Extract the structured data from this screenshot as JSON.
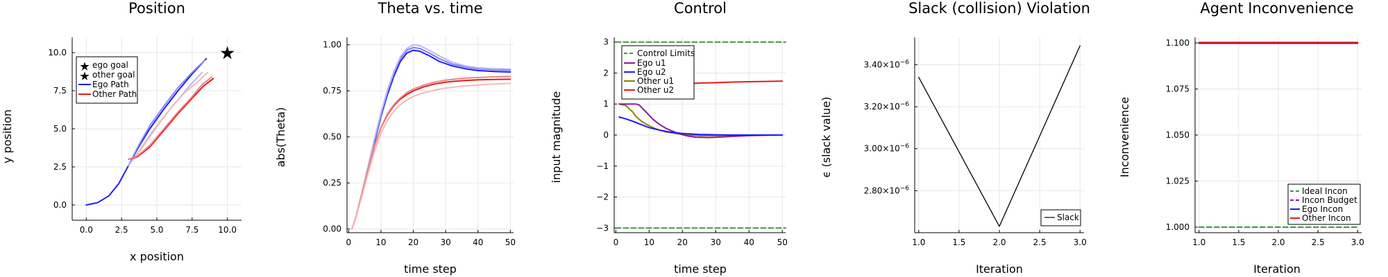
{
  "chart_data": [
    {
      "type": "line",
      "title": "Position",
      "xlabel": "x position",
      "ylabel": "y position",
      "xlim": [
        -1,
        11
      ],
      "ylim": [
        -1,
        11
      ],
      "xticks": [
        "0.0",
        "2.5",
        "5.0",
        "7.5",
        "10.0"
      ],
      "xtick_values": [
        0,
        2.5,
        5,
        7.5,
        10
      ],
      "yticks": [
        "0.0",
        "2.5",
        "5.0",
        "7.5",
        "10.0"
      ],
      "ytick_values": [
        0,
        2.5,
        5,
        7.5,
        10
      ],
      "grid": true,
      "legend_position": "top-left",
      "legend": [
        "ego goal",
        "other goal",
        "Ego Path",
        "Other Path"
      ],
      "goals": [
        {
          "name": "ego goal",
          "x": 10,
          "y": 10,
          "color": "#1a1aff"
        },
        {
          "name": "other goal",
          "x": 10,
          "y": 10,
          "color": "#e31a1c"
        }
      ],
      "series": [
        {
          "name": "Ego Path",
          "color": "#1a1aff",
          "x": [
            0,
            0.8,
            1.6,
            2.3,
            3.0,
            3.7,
            4.5,
            5.5,
            6.5,
            7.5,
            8.5
          ],
          "y": [
            0,
            0.15,
            0.6,
            1.4,
            2.6,
            3.8,
            5.0,
            6.3,
            7.5,
            8.6,
            9.6
          ]
        },
        {
          "name": "Ego Path",
          "color": "#8a8aff",
          "x": [
            3.0,
            3.7,
            4.5,
            5.5,
            6.5,
            7.5,
            8.4
          ],
          "y": [
            2.6,
            3.9,
            5.2,
            6.5,
            7.7,
            8.7,
            9.5
          ]
        },
        {
          "name": "Ego Path",
          "color": "#b8b8f0",
          "x": [
            3.0,
            3.8,
            4.6,
            5.5,
            6.4,
            7.3,
            8.2
          ],
          "y": [
            2.6,
            3.6,
            4.7,
            5.8,
            6.8,
            7.8,
            8.7
          ]
        },
        {
          "name": "Other Path",
          "color": "#e31a1c",
          "x": [
            3.0,
            3.6,
            4.5,
            5.5,
            6.5,
            7.5,
            8.3,
            9.0
          ],
          "y": [
            3.0,
            3.15,
            3.8,
            4.9,
            6.0,
            7.0,
            7.8,
            8.3
          ]
        },
        {
          "name": "Other Path",
          "color": "#f08080",
          "x": [
            3.0,
            3.6,
            4.5,
            5.5,
            6.5,
            7.5,
            8.2,
            8.9
          ],
          "y": [
            3.0,
            3.2,
            3.9,
            5.0,
            6.1,
            7.1,
            7.9,
            8.4
          ]
        },
        {
          "name": "Other Path",
          "color": "#f4b8b8",
          "x": [
            3.6,
            4.3,
            5.2,
            6.1,
            7.0,
            7.9,
            8.6
          ],
          "y": [
            3.3,
            4.2,
            5.4,
            6.5,
            7.4,
            8.1,
            8.7
          ]
        }
      ]
    },
    {
      "type": "line",
      "title": "Theta vs. time",
      "xlabel": "time step",
      "ylabel": "abs(Theta)",
      "xlim": [
        -0.5,
        51
      ],
      "ylim": [
        -0.02,
        1.04
      ],
      "xticks": [
        "0",
        "10",
        "20",
        "30",
        "40",
        "50"
      ],
      "xtick_values": [
        0,
        10,
        20,
        30,
        40,
        50
      ],
      "yticks": [
        "0.00",
        "0.25",
        "0.50",
        "0.75",
        "1.00"
      ],
      "ytick_values": [
        0,
        0.25,
        0.5,
        0.75,
        1.0
      ],
      "grid": true,
      "series": [
        {
          "color": "#1a1aff",
          "x": [
            1,
            2,
            4,
            6,
            8,
            10,
            12,
            14,
            16,
            18,
            20,
            22,
            25,
            28,
            32,
            36,
            40,
            45,
            50
          ],
          "y": [
            0,
            0.05,
            0.18,
            0.32,
            0.47,
            0.61,
            0.73,
            0.83,
            0.91,
            0.955,
            0.97,
            0.965,
            0.94,
            0.91,
            0.885,
            0.87,
            0.86,
            0.855,
            0.852
          ]
        },
        {
          "color": "#7a7aff",
          "x": [
            1,
            2,
            4,
            6,
            8,
            10,
            12,
            14,
            16,
            18,
            20,
            22,
            25,
            28,
            32,
            36,
            40,
            45,
            50
          ],
          "y": [
            0,
            0.05,
            0.18,
            0.33,
            0.48,
            0.62,
            0.745,
            0.845,
            0.925,
            0.97,
            0.985,
            0.98,
            0.955,
            0.925,
            0.895,
            0.88,
            0.87,
            0.865,
            0.862
          ]
        },
        {
          "color": "#b8b8f0",
          "x": [
            1,
            2,
            4,
            6,
            8,
            10,
            12,
            14,
            16,
            18,
            20,
            22,
            25,
            28,
            32,
            36,
            40,
            45,
            50
          ],
          "y": [
            0,
            0.05,
            0.19,
            0.34,
            0.49,
            0.63,
            0.755,
            0.855,
            0.935,
            0.98,
            1.0,
            0.995,
            0.97,
            0.94,
            0.905,
            0.885,
            0.875,
            0.87,
            0.868
          ]
        },
        {
          "color": "#e31a1c",
          "x": [
            1,
            2,
            4,
            6,
            8,
            10,
            12,
            14,
            16,
            18,
            20,
            23,
            26,
            30,
            35,
            40,
            45,
            50
          ],
          "y": [
            0,
            0.05,
            0.18,
            0.32,
            0.45,
            0.55,
            0.62,
            0.67,
            0.705,
            0.73,
            0.75,
            0.77,
            0.785,
            0.797,
            0.805,
            0.81,
            0.812,
            0.813
          ]
        },
        {
          "color": "#f08080",
          "x": [
            1,
            2,
            4,
            6,
            8,
            10,
            12,
            14,
            16,
            18,
            20,
            23,
            26,
            30,
            35,
            40,
            45,
            50
          ],
          "y": [
            0,
            0.05,
            0.18,
            0.32,
            0.45,
            0.55,
            0.625,
            0.675,
            0.712,
            0.74,
            0.76,
            0.78,
            0.795,
            0.808,
            0.817,
            0.822,
            0.826,
            0.828
          ]
        },
        {
          "color": "#f4b8b8",
          "x": [
            1,
            2,
            4,
            6,
            8,
            10,
            12,
            14,
            16,
            18,
            20,
            23,
            26,
            30,
            35,
            40,
            45,
            50
          ],
          "y": [
            0,
            0.05,
            0.17,
            0.3,
            0.42,
            0.52,
            0.59,
            0.64,
            0.675,
            0.7,
            0.72,
            0.738,
            0.752,
            0.765,
            0.775,
            0.782,
            0.787,
            0.79
          ]
        }
      ]
    },
    {
      "type": "line",
      "title": "Control",
      "xlabel": "time step",
      "ylabel": "input magnitude",
      "xlim": [
        -0.5,
        51
      ],
      "ylim": [
        -3.15,
        3.15
      ],
      "xticks": [
        "0",
        "10",
        "20",
        "30",
        "40",
        "50"
      ],
      "xtick_values": [
        0,
        10,
        20,
        30,
        40,
        50
      ],
      "yticks": [
        "−3",
        "−2",
        "−1",
        "0",
        "1",
        "2",
        "3"
      ],
      "ytick_values": [
        -3,
        -2,
        -1,
        0,
        1,
        2,
        3
      ],
      "grid": true,
      "legend_position": "top-left",
      "legend": [
        "Control Limits",
        "Ego u1",
        "Ego u2",
        "Other u1",
        "Other u2"
      ],
      "series": [
        {
          "name": "Control Limits",
          "color": "#3a9a3a",
          "dashed": true,
          "x": [
            0,
            51
          ],
          "y": [
            3,
            3
          ]
        },
        {
          "name": "Control Limits",
          "color": "#3a9a3a",
          "dashed": true,
          "x": [
            0,
            51
          ],
          "y": [
            -3,
            -3
          ]
        },
        {
          "name": "Other u1",
          "color": "#8b8000",
          "x": [
            1,
            3,
            5,
            6,
            8,
            10,
            12,
            15,
            20,
            25,
            30,
            40,
            50
          ],
          "y": [
            1,
            0.95,
            0.75,
            0.6,
            0.42,
            0.3,
            0.2,
            0.1,
            0.02,
            -0.02,
            -0.02,
            0,
            0
          ]
        },
        {
          "name": "Ego u1",
          "color": "#8b1a9b",
          "x": [
            1,
            3,
            5,
            6,
            7,
            9,
            11,
            13,
            15,
            18,
            21,
            24,
            28,
            32,
            36,
            40,
            45,
            50
          ],
          "y": [
            1,
            1,
            1,
            1,
            0.97,
            0.75,
            0.52,
            0.35,
            0.22,
            0.08,
            -0.02,
            -0.07,
            -0.08,
            -0.06,
            -0.04,
            -0.02,
            -0.01,
            0
          ]
        },
        {
          "name": "Ego u2",
          "color": "#1a1aff",
          "x": [
            1,
            3,
            5,
            8,
            10,
            13,
            16,
            20,
            25,
            30,
            35,
            40,
            45,
            50
          ],
          "y": [
            0.58,
            0.52,
            0.45,
            0.32,
            0.24,
            0.16,
            0.1,
            0.05,
            0.02,
            0.01,
            0,
            0,
            0,
            0
          ]
        },
        {
          "name": "Other u2",
          "color": "#e31a1c",
          "x": [
            14,
            18,
            22,
            26,
            30,
            35,
            40,
            45,
            50
          ],
          "y": [
            1.6,
            1.63,
            1.66,
            1.68,
            1.69,
            1.71,
            1.72,
            1.73,
            1.74
          ]
        }
      ]
    },
    {
      "type": "line",
      "title": "Slack (collision) Violation",
      "xlabel": "Iteration",
      "ylabel": "ϵ (slack value)",
      "xlim": [
        0.95,
        3.05
      ],
      "ylim": [
        2.6e-06,
        3.53e-06
      ],
      "xticks": [
        "1.0",
        "1.5",
        "2.0",
        "2.5",
        "3.0"
      ],
      "xtick_values": [
        1.0,
        1.5,
        2.0,
        2.5,
        3.0
      ],
      "ytick_values": [
        2.8e-06,
        3e-06,
        3.2e-06,
        3.4e-06
      ],
      "ytick_mantissa": [
        "2.80",
        "3.00",
        "3.20",
        "3.40"
      ],
      "ytick_base": "×10",
      "ytick_exp": "−6",
      "grid": true,
      "legend_position": "bottom-right",
      "legend": [
        "Slack"
      ],
      "series": [
        {
          "name": "Slack",
          "color": "#000000",
          "x": [
            1,
            2,
            3
          ],
          "y": [
            3.34e-06,
            2.63e-06,
            3.49e-06
          ]
        }
      ]
    },
    {
      "type": "line",
      "title": "Agent Inconvenience",
      "xlabel": "Iteration",
      "ylabel": "Inconvenience",
      "xlim": [
        0.95,
        3.05
      ],
      "ylim": [
        0.997,
        1.103
      ],
      "xticks": [
        "1.0",
        "1.5",
        "2.0",
        "2.5",
        "3.0"
      ],
      "xtick_values": [
        1.0,
        1.5,
        2.0,
        2.5,
        3.0
      ],
      "yticks": [
        "1.000",
        "1.025",
        "1.050",
        "1.075",
        "1.100"
      ],
      "ytick_values": [
        1.0,
        1.025,
        1.05,
        1.075,
        1.1
      ],
      "grid": true,
      "legend_position": "bottom-right",
      "legend": [
        "Ideal Incon",
        "Incon Budget",
        "Ego Incon",
        "Other Incon"
      ],
      "series": [
        {
          "name": "Ideal Incon",
          "color": "#3a9a3a",
          "dashed": true,
          "x": [
            1,
            3
          ],
          "y": [
            1.0,
            1.0
          ]
        },
        {
          "name": "Incon Budget",
          "color": "#8b1a9b",
          "dashed": true,
          "x": [
            1,
            3
          ],
          "y": [
            1.1,
            1.1
          ]
        },
        {
          "name": "Ego Incon",
          "color": "#1a1aff",
          "x": [
            1,
            2,
            3
          ],
          "y": [
            1.0998,
            1.0998,
            1.0998
          ]
        },
        {
          "name": "Other Incon",
          "color": "#e31a1c",
          "x": [
            1,
            2,
            3
          ],
          "y": [
            1.1003,
            1.1003,
            1.1003
          ]
        }
      ]
    }
  ]
}
